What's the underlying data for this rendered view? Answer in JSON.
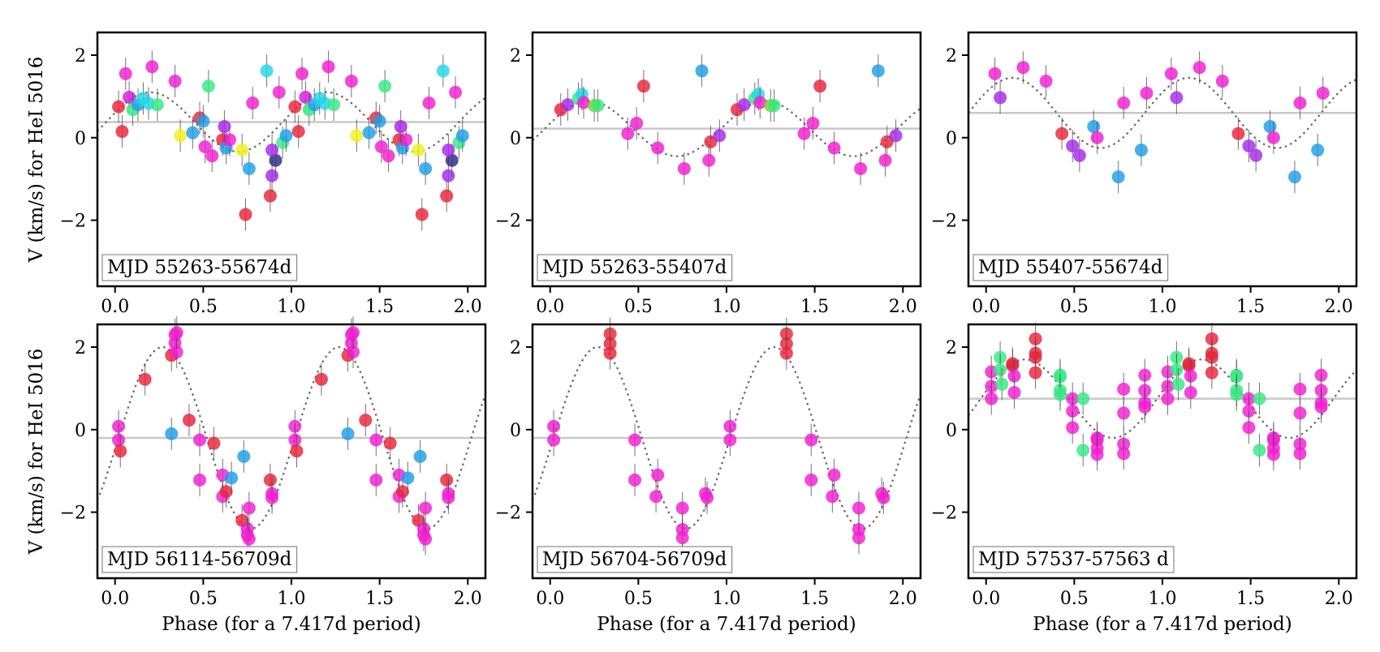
{
  "chart_data": [
    {
      "type": "scatter",
      "annotation": "MJD 55263-55674d",
      "ylabel": "V (km/s) for HeI 5016",
      "xlabel": "",
      "xlim": [
        -0.1,
        2.1
      ],
      "ylim": [
        -3.6,
        2.55
      ],
      "xticks": [
        "0.0",
        "0.5",
        "1.0",
        "1.5",
        "2.0"
      ],
      "yticks": [
        "2",
        "0",
        "−2"
      ],
      "mean_level": 0.38,
      "model": {
        "mean": 0.38,
        "amplitude": 0.72,
        "phase_peak": 0.2
      },
      "points": [
        {
          "x": 0.02,
          "y": 0.75,
          "c": "#e8243a"
        },
        {
          "x": 0.04,
          "y": 0.15,
          "c": "#e8243a"
        },
        {
          "x": 0.06,
          "y": 1.55,
          "c": "#f01fd2"
        },
        {
          "x": 0.08,
          "y": 0.98,
          "c": "#d51bde"
        },
        {
          "x": 0.1,
          "y": 0.68,
          "c": "#38e884"
        },
        {
          "x": 0.13,
          "y": 0.8,
          "c": "#1e9fe8"
        },
        {
          "x": 0.16,
          "y": 0.95,
          "c": "#22d7e8"
        },
        {
          "x": 0.19,
          "y": 0.83,
          "c": "#22d7e8"
        },
        {
          "x": 0.21,
          "y": 1.72,
          "c": "#f01fd2"
        },
        {
          "x": 0.24,
          "y": 0.8,
          "c": "#38e884"
        },
        {
          "x": 0.34,
          "y": 1.37,
          "c": "#f01fd2"
        },
        {
          "x": 0.37,
          "y": 0.05,
          "c": "#f0f020"
        },
        {
          "x": 0.44,
          "y": 0.12,
          "c": "#1e9fe8"
        },
        {
          "x": 0.48,
          "y": 0.48,
          "c": "#e8243a"
        },
        {
          "x": 0.51,
          "y": -0.22,
          "c": "#f01fd2"
        },
        {
          "x": 0.53,
          "y": 1.25,
          "c": "#38e884"
        },
        {
          "x": 0.55,
          "y": -0.44,
          "c": "#f01fd2"
        },
        {
          "x": 0.61,
          "y": -0.05,
          "c": "#e8243a"
        },
        {
          "x": 0.63,
          "y": -0.25,
          "c": "#1e9fe8"
        },
        {
          "x": 0.65,
          "y": -0.05,
          "c": "#f01fd2"
        },
        {
          "x": 0.72,
          "y": -0.3,
          "c": "#f0f020"
        },
        {
          "x": 0.74,
          "y": -1.86,
          "c": "#e8243a"
        },
        {
          "x": 0.76,
          "y": -0.75,
          "c": "#1e9fe8"
        },
        {
          "x": 0.78,
          "y": 0.84,
          "c": "#f01fd2"
        },
        {
          "x": 0.86,
          "y": 1.62,
          "c": "#22d7e8"
        },
        {
          "x": 0.88,
          "y": -1.41,
          "c": "#e8243a"
        },
        {
          "x": 0.89,
          "y": -0.92,
          "c": "#a62ae8"
        },
        {
          "x": 0.91,
          "y": -0.55,
          "c": "#2a2a8a"
        },
        {
          "x": 0.93,
          "y": 1.1,
          "c": "#f01fd2"
        },
        {
          "x": 0.95,
          "y": -0.12,
          "c": "#38e884"
        },
        {
          "x": 0.97,
          "y": 0.05,
          "c": "#1e9fe8"
        },
        {
          "x": 0.62,
          "y": 0.27,
          "c": "#a62ae8"
        },
        {
          "x": 0.89,
          "y": -0.3,
          "c": "#a62ae8"
        },
        {
          "x": 0.5,
          "y": 0.4,
          "c": "#1e9fe8"
        }
      ]
    },
    {
      "type": "scatter",
      "annotation": "MJD 55263-55407d",
      "ylabel": "",
      "xlabel": "",
      "xlim": [
        -0.1,
        2.1
      ],
      "ylim": [
        -3.6,
        2.55
      ],
      "xticks": [
        "0.0",
        "0.5",
        "1.0",
        "1.5",
        "2.0"
      ],
      "yticks": [
        "2",
        "0",
        "−2"
      ],
      "mean_level": 0.22,
      "model": {
        "mean": 0.22,
        "amplitude": 0.67,
        "phase_peak": 0.22
      },
      "points": [
        {
          "x": 0.06,
          "y": 0.68,
          "c": "#e8243a"
        },
        {
          "x": 0.1,
          "y": 0.8,
          "c": "#a62ae8"
        },
        {
          "x": 0.16,
          "y": 0.95,
          "c": "#38e884"
        },
        {
          "x": 0.18,
          "y": 1.05,
          "c": "#22d7e8"
        },
        {
          "x": 0.19,
          "y": 0.85,
          "c": "#f01fd2"
        },
        {
          "x": 0.25,
          "y": 0.78,
          "c": "#7ed320"
        },
        {
          "x": 0.27,
          "y": 0.78,
          "c": "#38e884"
        },
        {
          "x": 0.44,
          "y": 0.1,
          "c": "#f01fd2"
        },
        {
          "x": 0.49,
          "y": 0.35,
          "c": "#f01fd2"
        },
        {
          "x": 0.53,
          "y": 1.25,
          "c": "#e8243a"
        },
        {
          "x": 0.61,
          "y": -0.25,
          "c": "#f01fd2"
        },
        {
          "x": 0.76,
          "y": -0.75,
          "c": "#f01fd2"
        },
        {
          "x": 0.86,
          "y": 1.62,
          "c": "#1e9fe8"
        },
        {
          "x": 0.91,
          "y": -0.1,
          "c": "#e8243a"
        },
        {
          "x": 0.9,
          "y": -0.55,
          "c": "#f01fd2"
        },
        {
          "x": 0.96,
          "y": 0.05,
          "c": "#a62ae8"
        }
      ]
    },
    {
      "type": "scatter",
      "annotation": "MJD 55407-55674d",
      "ylabel": "",
      "xlabel": "",
      "xlim": [
        -0.1,
        2.1
      ],
      "ylim": [
        -3.6,
        2.55
      ],
      "xticks": [
        "0.0",
        "0.5",
        "1.0",
        "1.5",
        "2.0"
      ],
      "yticks": [
        "2",
        "0",
        "−2"
      ],
      "mean_level": 0.6,
      "model": {
        "mean": 0.6,
        "amplitude": 0.85,
        "phase_peak": 0.15
      },
      "points": [
        {
          "x": 0.05,
          "y": 1.55,
          "c": "#f01fd2"
        },
        {
          "x": 0.08,
          "y": 0.97,
          "c": "#a62ae8"
        },
        {
          "x": 0.21,
          "y": 1.7,
          "c": "#f01fd2"
        },
        {
          "x": 0.34,
          "y": 1.37,
          "c": "#f01fd2"
        },
        {
          "x": 0.43,
          "y": 0.1,
          "c": "#e8243a"
        },
        {
          "x": 0.49,
          "y": -0.2,
          "c": "#a62ae8"
        },
        {
          "x": 0.53,
          "y": -0.43,
          "c": "#a62ae8"
        },
        {
          "x": 0.61,
          "y": 0.27,
          "c": "#1e9fe8"
        },
        {
          "x": 0.63,
          "y": 0.0,
          "c": "#f01fd2"
        },
        {
          "x": 0.75,
          "y": -0.95,
          "c": "#1e9fe8"
        },
        {
          "x": 0.78,
          "y": 0.84,
          "c": "#f01fd2"
        },
        {
          "x": 0.88,
          "y": -0.3,
          "c": "#1e9fe8"
        },
        {
          "x": 0.91,
          "y": 1.08,
          "c": "#f01fd2"
        }
      ]
    },
    {
      "type": "scatter",
      "annotation": "MJD 56114-56709d",
      "ylabel": "V (km/s) for HeI 5016",
      "xlabel": "Phase (for a 7.417d period)",
      "xlim": [
        -0.1,
        2.1
      ],
      "ylim": [
        -3.6,
        2.55
      ],
      "xticks": [
        "0.0",
        "0.5",
        "1.0",
        "1.5",
        "2.0"
      ],
      "yticks": [
        "2",
        "0",
        "−2"
      ],
      "mean_level": -0.2,
      "model": {
        "mean": -0.2,
        "amplitude": 2.2,
        "phase_peak": 0.27
      },
      "points": [
        {
          "x": 0.02,
          "y": 0.08,
          "c": "#f01fd2"
        },
        {
          "x": 0.02,
          "y": -0.25,
          "c": "#f01fd2"
        },
        {
          "x": 0.03,
          "y": -0.52,
          "c": "#e8243a"
        },
        {
          "x": 0.17,
          "y": 1.22,
          "c": "#e8243a"
        },
        {
          "x": 0.32,
          "y": 1.8,
          "c": "#e8243a"
        },
        {
          "x": 0.34,
          "y": 2.3,
          "c": "#f01fd2"
        },
        {
          "x": 0.34,
          "y": 2.1,
          "c": "#f01fd2"
        },
        {
          "x": 0.35,
          "y": 1.88,
          "c": "#f01fd2"
        },
        {
          "x": 0.35,
          "y": 2.35,
          "c": "#f01fd2"
        },
        {
          "x": 0.32,
          "y": -0.1,
          "c": "#1e9fe8"
        },
        {
          "x": 0.42,
          "y": 0.23,
          "c": "#e8243a"
        },
        {
          "x": 0.48,
          "y": -0.25,
          "c": "#f01fd2"
        },
        {
          "x": 0.48,
          "y": -1.22,
          "c": "#f01fd2"
        },
        {
          "x": 0.56,
          "y": -0.33,
          "c": "#e8243a"
        },
        {
          "x": 0.61,
          "y": -1.1,
          "c": "#f01fd2"
        },
        {
          "x": 0.61,
          "y": -1.62,
          "c": "#f01fd2"
        },
        {
          "x": 0.63,
          "y": -1.5,
          "c": "#e8243a"
        },
        {
          "x": 0.66,
          "y": -1.17,
          "c": "#1e9fe8"
        },
        {
          "x": 0.72,
          "y": -2.2,
          "c": "#e8243a"
        },
        {
          "x": 0.73,
          "y": -0.65,
          "c": "#1e9fe8"
        },
        {
          "x": 0.75,
          "y": -2.4,
          "c": "#f01fd2"
        },
        {
          "x": 0.75,
          "y": -2.55,
          "c": "#f01fd2"
        },
        {
          "x": 0.76,
          "y": -2.65,
          "c": "#f01fd2"
        },
        {
          "x": 0.76,
          "y": -1.9,
          "c": "#f01fd2"
        },
        {
          "x": 0.88,
          "y": -1.22,
          "c": "#e8243a"
        },
        {
          "x": 0.89,
          "y": -1.55,
          "c": "#f01fd2"
        },
        {
          "x": 0.89,
          "y": -1.65,
          "c": "#f01fd2"
        }
      ]
    },
    {
      "type": "scatter",
      "annotation": "MJD 56704-56709d",
      "ylabel": "",
      "xlabel": "Phase (for a 7.417d period)",
      "xlim": [
        -0.1,
        2.1
      ],
      "ylim": [
        -3.6,
        2.55
      ],
      "xticks": [
        "0.0",
        "0.5",
        "1.0",
        "1.5",
        "2.0"
      ],
      "yticks": [
        "2",
        "0",
        "−2"
      ],
      "mean_level": -0.2,
      "model": {
        "mean": -0.2,
        "amplitude": 2.2,
        "phase_peak": 0.27
      },
      "points": [
        {
          "x": 0.02,
          "y": 0.08,
          "c": "#f01fd2"
        },
        {
          "x": 0.02,
          "y": -0.25,
          "c": "#f01fd2"
        },
        {
          "x": 0.34,
          "y": 2.32,
          "c": "#e8243a"
        },
        {
          "x": 0.34,
          "y": 2.08,
          "c": "#e8243a"
        },
        {
          "x": 0.34,
          "y": 1.85,
          "c": "#e8243a"
        },
        {
          "x": 0.48,
          "y": -0.25,
          "c": "#f01fd2"
        },
        {
          "x": 0.48,
          "y": -1.22,
          "c": "#f01fd2"
        },
        {
          "x": 0.61,
          "y": -1.1,
          "c": "#f01fd2"
        },
        {
          "x": 0.6,
          "y": -1.62,
          "c": "#f01fd2"
        },
        {
          "x": 0.75,
          "y": -1.9,
          "c": "#f01fd2"
        },
        {
          "x": 0.75,
          "y": -2.42,
          "c": "#f01fd2"
        },
        {
          "x": 0.75,
          "y": -2.62,
          "c": "#f01fd2"
        },
        {
          "x": 0.88,
          "y": -1.55,
          "c": "#f01fd2"
        },
        {
          "x": 0.89,
          "y": -1.65,
          "c": "#f01fd2"
        }
      ]
    },
    {
      "type": "scatter",
      "annotation": "MJD 57537-57563 d",
      "ylabel": "",
      "xlabel": "Phase (for a 7.417d period)",
      "xlim": [
        -0.1,
        2.1
      ],
      "ylim": [
        -3.6,
        2.55
      ],
      "xticks": [
        "0.0",
        "0.5",
        "1.0",
        "1.5",
        "2.0"
      ],
      "yticks": [
        "2",
        "0",
        "−2"
      ],
      "mean_level": 0.75,
      "model": {
        "mean": 0.75,
        "amplitude": 0.95,
        "phase_peak": 0.22
      },
      "points": [
        {
          "x": 0.03,
          "y": 1.4,
          "c": "#f01fd2"
        },
        {
          "x": 0.03,
          "y": 1.05,
          "c": "#f01fd2"
        },
        {
          "x": 0.03,
          "y": 0.75,
          "c": "#f01fd2"
        },
        {
          "x": 0.08,
          "y": 1.75,
          "c": "#38e884"
        },
        {
          "x": 0.08,
          "y": 1.45,
          "c": "#38e884"
        },
        {
          "x": 0.09,
          "y": 1.1,
          "c": "#38e884"
        },
        {
          "x": 0.15,
          "y": 1.55,
          "c": "#e8243a"
        },
        {
          "x": 0.15,
          "y": 1.6,
          "c": "#e8243a"
        },
        {
          "x": 0.16,
          "y": 1.3,
          "c": "#f01fd2"
        },
        {
          "x": 0.16,
          "y": 0.9,
          "c": "#f01fd2"
        },
        {
          "x": 0.28,
          "y": 2.2,
          "c": "#e8243a"
        },
        {
          "x": 0.28,
          "y": 1.85,
          "c": "#e8243a"
        },
        {
          "x": 0.28,
          "y": 1.75,
          "c": "#e8243a"
        },
        {
          "x": 0.28,
          "y": 1.38,
          "c": "#e8243a"
        },
        {
          "x": 0.42,
          "y": 1.32,
          "c": "#38e884"
        },
        {
          "x": 0.42,
          "y": 1.28,
          "c": "#38e884"
        },
        {
          "x": 0.42,
          "y": 0.95,
          "c": "#38e884"
        },
        {
          "x": 0.42,
          "y": 0.85,
          "c": "#38e884"
        },
        {
          "x": 0.49,
          "y": 0.75,
          "c": "#f01fd2"
        },
        {
          "x": 0.49,
          "y": 0.45,
          "c": "#f01fd2"
        },
        {
          "x": 0.49,
          "y": 0.05,
          "c": "#f01fd2"
        },
        {
          "x": 0.55,
          "y": 0.75,
          "c": "#38e884"
        },
        {
          "x": 0.55,
          "y": -0.5,
          "c": "#38e884"
        },
        {
          "x": 0.63,
          "y": -0.2,
          "c": "#f01fd2"
        },
        {
          "x": 0.63,
          "y": -0.25,
          "c": "#f01fd2"
        },
        {
          "x": 0.63,
          "y": -0.45,
          "c": "#f01fd2"
        },
        {
          "x": 0.63,
          "y": -0.6,
          "c": "#f01fd2"
        },
        {
          "x": 0.78,
          "y": 0.98,
          "c": "#f01fd2"
        },
        {
          "x": 0.78,
          "y": 0.4,
          "c": "#f01fd2"
        },
        {
          "x": 0.78,
          "y": -0.35,
          "c": "#f01fd2"
        },
        {
          "x": 0.78,
          "y": -0.58,
          "c": "#f01fd2"
        },
        {
          "x": 0.9,
          "y": 1.32,
          "c": "#f01fd2"
        },
        {
          "x": 0.9,
          "y": 0.95,
          "c": "#f01fd2"
        },
        {
          "x": 0.9,
          "y": 0.65,
          "c": "#f01fd2"
        },
        {
          "x": 0.9,
          "y": 0.55,
          "c": "#f01fd2"
        }
      ]
    }
  ]
}
